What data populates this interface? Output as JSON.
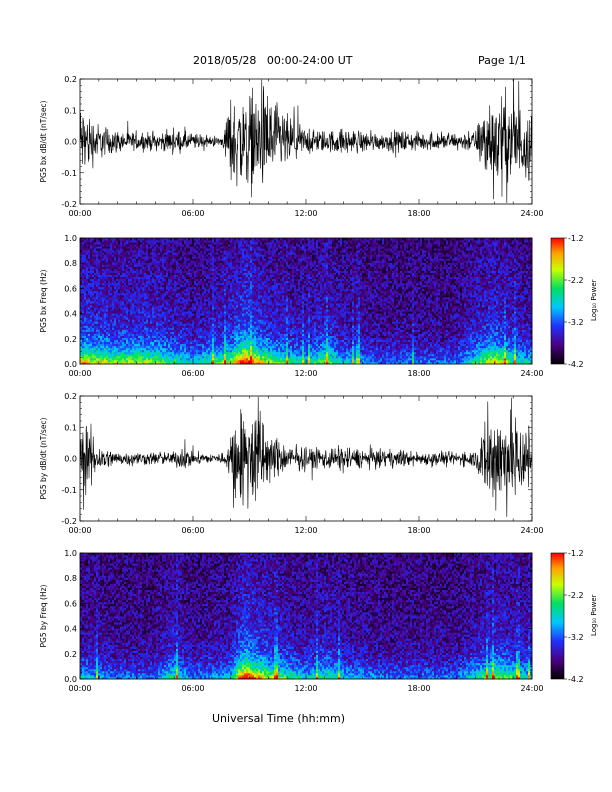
{
  "header": {
    "title": "2018/05/28   00:00-24:00 UT",
    "page": "Page 1/1"
  },
  "footer": {
    "xlabel": "Universal Time (hh:mm)"
  },
  "colorbar": {
    "label": "Log₁₀ Power",
    "ticks": [
      "-1.2",
      "-2.2",
      "-3.2",
      "-4.2"
    ],
    "tick_values": [
      -1.2,
      -2.2,
      -3.2,
      -4.2
    ],
    "range": [
      -4.2,
      -1.2
    ]
  },
  "colors": {
    "trace": "#000000",
    "spectrogram_low": "#000000",
    "spectrogram_mid": "#6a00c8",
    "spectrogram_high": "#ff0000"
  },
  "chart_data": [
    {
      "type": "line",
      "ylabel": "PG5 bx dB/dt (nT/sec)",
      "xlim": [
        "00:00",
        "24:00"
      ],
      "ylim": [
        -0.2,
        0.2
      ],
      "x_ticks": [
        "00:00",
        "06:00",
        "12:00",
        "18:00",
        "24:00"
      ],
      "y_ticks": [
        "0.2",
        "0.1",
        "0.0",
        "-0.1",
        "-0.2"
      ],
      "y_tick_values": [
        0.2,
        0.1,
        0.0,
        -0.1,
        -0.2
      ],
      "envelope_hours": [
        0,
        1,
        2,
        3,
        4,
        5,
        6,
        7,
        7.6,
        8,
        9,
        10,
        11,
        12,
        13,
        14,
        15,
        16,
        17,
        18,
        19,
        20,
        21,
        21.7,
        22,
        23,
        24
      ],
      "envelope_amplitude": [
        0.18,
        0.08,
        0.05,
        0.04,
        0.04,
        0.05,
        0.04,
        0.02,
        0.03,
        0.2,
        0.22,
        0.22,
        0.12,
        0.06,
        0.05,
        0.06,
        0.05,
        0.04,
        0.05,
        0.04,
        0.04,
        0.04,
        0.05,
        0.22,
        0.22,
        0.22,
        0.15
      ]
    },
    {
      "type": "heatmap",
      "ylabel": "PG5 bx Freq (Hz)",
      "xlim": [
        "00:00",
        "24:00"
      ],
      "ylim": [
        0.0,
        1.0
      ],
      "x_ticks": [
        "00:00",
        "06:00",
        "12:00",
        "18:00",
        "24:00"
      ],
      "y_ticks": [
        "1.0",
        "0.8",
        "0.6",
        "0.4",
        "0.2",
        "0.0"
      ],
      "y_tick_values": [
        1.0,
        0.8,
        0.6,
        0.4,
        0.2,
        0.0
      ],
      "color_range": [
        -4.2,
        -1.2
      ],
      "activity_hours": [
        0,
        2,
        4,
        6,
        8,
        8.7,
        10,
        12,
        13,
        14,
        16,
        18,
        20,
        22,
        23,
        24
      ],
      "activity_level": [
        0.6,
        0.5,
        0.5,
        0.3,
        0.5,
        0.8,
        0.5,
        0.3,
        0.5,
        0.3,
        0.2,
        0.2,
        0.2,
        0.6,
        0.4,
        0.3
      ]
    },
    {
      "type": "line",
      "ylabel": "PG5 by dB/dt (nT/sec)",
      "xlim": [
        "00:00",
        "24:00"
      ],
      "ylim": [
        -0.2,
        0.2
      ],
      "x_ticks": [
        "00:00",
        "06:00",
        "12:00",
        "18:00",
        "24:00"
      ],
      "y_ticks": [
        "0.2",
        "0.1",
        "0.0",
        "-0.1",
        "-0.2"
      ],
      "y_tick_values": [
        0.2,
        0.1,
        0.0,
        -0.1,
        -0.2
      ],
      "envelope_hours": [
        0,
        0.5,
        1,
        2,
        3,
        4,
        5,
        5.5,
        6,
        7,
        7.8,
        8.2,
        9,
        9.5,
        10,
        11,
        12,
        13,
        14,
        15,
        16,
        17,
        18,
        19,
        20,
        21,
        21.7,
        22,
        23,
        24
      ],
      "envelope_amplitude": [
        0.15,
        0.15,
        0.06,
        0.03,
        0.03,
        0.03,
        0.03,
        0.06,
        0.03,
        0.02,
        0.03,
        0.22,
        0.22,
        0.22,
        0.12,
        0.06,
        0.05,
        0.05,
        0.06,
        0.04,
        0.04,
        0.04,
        0.03,
        0.03,
        0.03,
        0.04,
        0.22,
        0.22,
        0.22,
        0.15
      ]
    },
    {
      "type": "heatmap",
      "ylabel": "PG5 by Freq (Hz)",
      "xlim": [
        "00:00",
        "24:00"
      ],
      "ylim": [
        0.0,
        1.0
      ],
      "x_ticks": [
        "00:00",
        "06:00",
        "12:00",
        "18:00",
        "24:00"
      ],
      "y_ticks": [
        "1.0",
        "0.8",
        "0.6",
        "0.4",
        "0.2",
        "0.0"
      ],
      "y_tick_values": [
        1.0,
        0.8,
        0.6,
        0.4,
        0.2,
        0.0
      ],
      "color_range": [
        -4.2,
        -1.2
      ],
      "activity_hours": [
        0,
        2,
        4,
        5,
        6,
        8,
        8.7,
        10,
        12,
        13,
        14,
        16,
        18,
        20,
        22,
        23,
        24
      ],
      "activity_level": [
        0.3,
        0.2,
        0.2,
        0.4,
        0.2,
        0.3,
        0.8,
        0.5,
        0.3,
        0.4,
        0.3,
        0.2,
        0.2,
        0.2,
        0.5,
        0.4,
        0.3
      ]
    }
  ]
}
